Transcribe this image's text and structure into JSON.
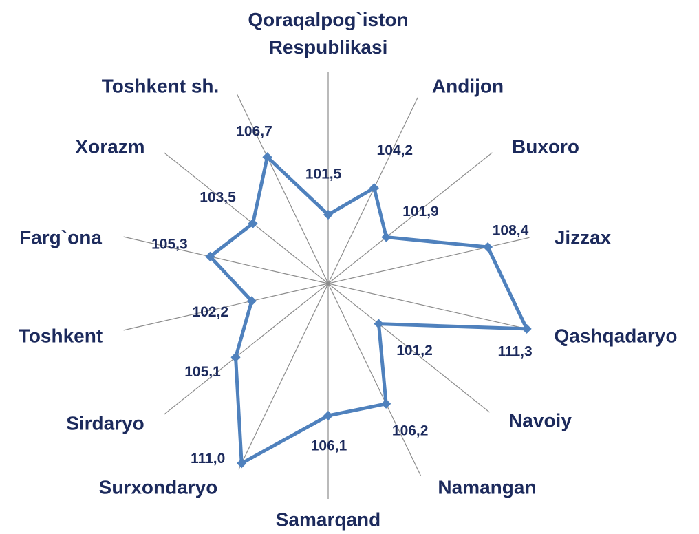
{
  "chart_data": {
    "type": "radar",
    "categories": [
      "Qoraqalpog`iston Respublikasi",
      "Andijon",
      "Buxoro",
      "Jizzax",
      "Qashqadaryo",
      "Navoiy",
      "Namangan",
      "Samarqand",
      "Surxondaryo",
      "Sirdaryo",
      "Toshkent",
      "Farg`ona",
      "Xorazm",
      "Toshkent sh."
    ],
    "values": [
      101.5,
      104.2,
      101.9,
      108.4,
      111.3,
      101.2,
      106.2,
      106.1,
      111.0,
      105.1,
      102.2,
      105.3,
      103.5,
      106.7
    ],
    "value_labels": [
      "101,5",
      "104,2",
      "101,9",
      "108,4",
      "111,3",
      "101,2",
      "106,2",
      "106,1",
      "111,0",
      "105,1",
      "102,2",
      "105,3",
      "103,5",
      "106,7"
    ],
    "color": "#4f81bd",
    "ylim": [
      96.5,
      112
    ]
  }
}
